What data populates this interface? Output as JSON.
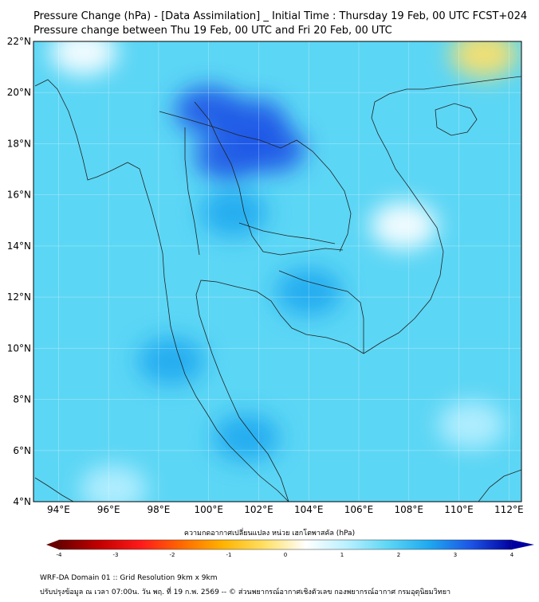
{
  "title_line1": "Pressure Change (hPa) - [Data Assimilation] _ Initial Time : Thursday 19 Feb, 00 UTC FCST+024",
  "title_line2": "Pressure change between Thu 19 Feb, 00 UTC and Fri 20 Feb, 00 UTC",
  "map": {
    "lon_range": [
      93,
      112.5
    ],
    "lat_range": [
      4,
      22
    ],
    "lon_ticks": [
      {
        "value": 94,
        "label": "94°E"
      },
      {
        "value": 96,
        "label": "96°E"
      },
      {
        "value": 98,
        "label": "98°E"
      },
      {
        "value": 100,
        "label": "100°E"
      },
      {
        "value": 102,
        "label": "102°E"
      },
      {
        "value": 104,
        "label": "104°E"
      },
      {
        "value": 106,
        "label": "106°E"
      },
      {
        "value": 108,
        "label": "108°E"
      },
      {
        "value": 110,
        "label": "110°E"
      },
      {
        "value": 112,
        "label": "112°E"
      }
    ],
    "lat_ticks": [
      {
        "value": 22,
        "label": "22°N"
      },
      {
        "value": 20,
        "label": "20°N"
      },
      {
        "value": 18,
        "label": "18°N"
      },
      {
        "value": 16,
        "label": "16°N"
      },
      {
        "value": 14,
        "label": "14°N"
      },
      {
        "value": 12,
        "label": "12°N"
      },
      {
        "value": 10,
        "label": "10°N"
      },
      {
        "value": 8,
        "label": "8°N"
      },
      {
        "value": 6,
        "label": "6°N"
      },
      {
        "value": 4,
        "label": "4°N"
      }
    ],
    "background_color": "#5cd6f5",
    "field_blobs": [
      {
        "lon": 100,
        "lat": 19.3,
        "value": 3.3
      },
      {
        "lon": 101.8,
        "lat": 18.8,
        "value": 3.2
      },
      {
        "lon": 100.8,
        "lat": 17.5,
        "value": 2.8
      },
      {
        "lon": 102.5,
        "lat": 17.8,
        "value": 2.8
      },
      {
        "lon": 101,
        "lat": 15.3,
        "value": 2.5
      },
      {
        "lon": 104,
        "lat": 12.2,
        "value": 2.4
      },
      {
        "lon": 98.5,
        "lat": 9.5,
        "value": 2.3
      },
      {
        "lon": 101.5,
        "lat": 6.5,
        "value": 2.4
      },
      {
        "lon": 95,
        "lat": 21.6,
        "value": 0.5
      },
      {
        "lon": 111,
        "lat": 21.5,
        "value": -0.2
      },
      {
        "lon": 107.8,
        "lat": 14.8,
        "value": 0.4
      },
      {
        "lon": 110.5,
        "lat": 7.0,
        "value": 1.2
      },
      {
        "lon": 96.2,
        "lat": 4.5,
        "value": 0.9
      }
    ]
  },
  "colorbar": {
    "label": "ความกดอากาศเปลี่ยนแปลง หน่วย เฮกโตพาสคัล (hPa)",
    "min": -4,
    "max": 4,
    "ticks": [
      {
        "value": -4,
        "label": "-4"
      },
      {
        "value": -3,
        "label": "-3"
      },
      {
        "value": -2,
        "label": "-2"
      },
      {
        "value": -1,
        "label": "-1"
      },
      {
        "value": 0,
        "label": "0"
      },
      {
        "value": 1,
        "label": "1"
      },
      {
        "value": 2,
        "label": "2"
      },
      {
        "value": 3,
        "label": "3"
      },
      {
        "value": 4,
        "label": "4"
      }
    ],
    "colors": [
      "#6a0000",
      "#c40000",
      "#ff1a1a",
      "#ff6a00",
      "#ffb400",
      "#ffe066",
      "#ffffff",
      "#b8f0ff",
      "#5cd6f5",
      "#1ea8f0",
      "#1c55e6",
      "#0000a0"
    ]
  },
  "footer_line1": "WRF-DA Domain 01 :: Grid Resolution 9km x 9km",
  "footer_line2": "ปรับปรุงข้อมูล ณ เวลา 07:00น. วัน พฤ. ที่ 19 ก.พ. 2569 -- © ส่วนพยากรณ์อากาศเชิงตัวเลข กองพยากรณ์อากาศ กรมอุตุนิยมวิทยา"
}
